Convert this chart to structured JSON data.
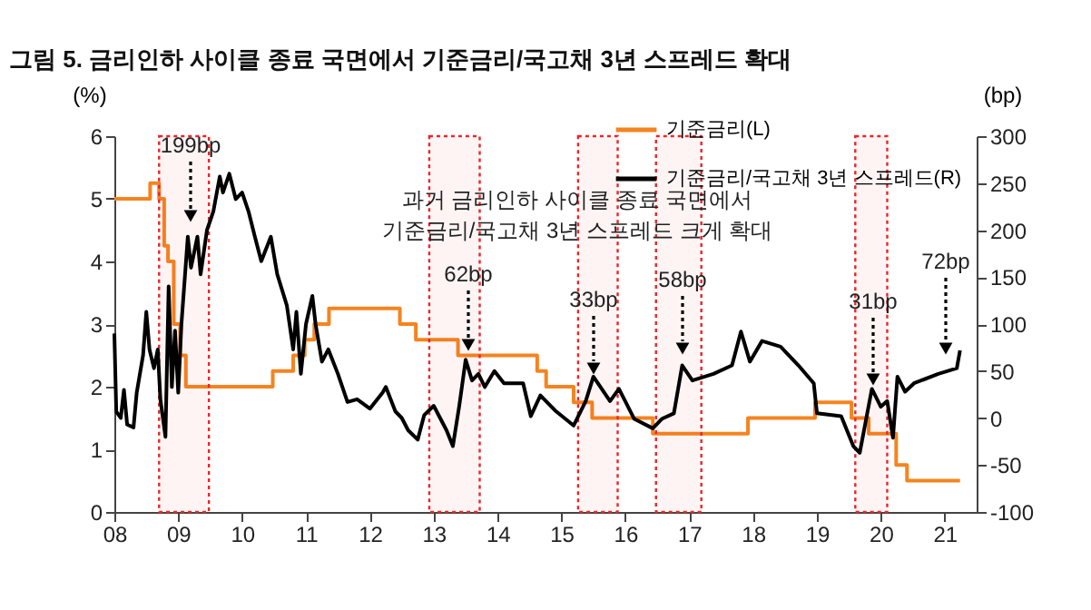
{
  "chart_data": {
    "type": "line",
    "title": "그림 5. 금리인하 사이클 종료 국면에서 기준금리/국고채 3년 스프레드 확대",
    "ylabel": "(%)",
    "y2label": "(bp)",
    "xlim": [
      2008,
      2021.5
    ],
    "xticks": [
      {
        "value": 2008,
        "label": "08"
      },
      {
        "value": 2009,
        "label": "09"
      },
      {
        "value": 2010,
        "label": "10"
      },
      {
        "value": 2011,
        "label": "11"
      },
      {
        "value": 2012,
        "label": "12"
      },
      {
        "value": 2013,
        "label": "13"
      },
      {
        "value": 2014,
        "label": "14"
      },
      {
        "value": 2015,
        "label": "15"
      },
      {
        "value": 2016,
        "label": "16"
      },
      {
        "value": 2017,
        "label": "17"
      },
      {
        "value": 2018,
        "label": "18"
      },
      {
        "value": 2019,
        "label": "19"
      },
      {
        "value": 2020,
        "label": "20"
      },
      {
        "value": 2021,
        "label": "21"
      }
    ],
    "ylim": [
      0,
      6
    ],
    "yticks": [
      0,
      1,
      2,
      3,
      4,
      5,
      6
    ],
    "y2lim": [
      -100,
      300
    ],
    "y2ticks": [
      -100,
      -50,
      0,
      50,
      100,
      150,
      200,
      250,
      300
    ],
    "grid": false,
    "legend": "top right",
    "marker": "none",
    "line_style": "solid",
    "series": [
      {
        "name": "기준금리(L)",
        "type": "step",
        "color": "#f5841f",
        "x": [
          2008,
          2008.56,
          2008.7,
          2008.78,
          2008.84,
          2008.93,
          2009.03,
          2009.12,
          2010.48,
          2010.8,
          2010.98,
          2011.13,
          2011.36,
          2012.47,
          2012.72,
          2013.38,
          2014.62,
          2014.76,
          2015.19,
          2015.48,
          2016.43,
          2017.92,
          2018.97,
          2019.54,
          2019.81,
          2020.24,
          2020.41,
          2021.24
        ],
        "values": [
          5.0,
          5.25,
          5.0,
          4.25,
          4.0,
          3.0,
          2.5,
          2.0,
          2.25,
          2.5,
          2.75,
          3.0,
          3.25,
          3.0,
          2.75,
          2.5,
          2.25,
          2.0,
          1.75,
          1.5,
          1.25,
          1.5,
          1.75,
          1.5,
          1.25,
          0.75,
          0.5,
          0.5
        ]
      },
      {
        "name": "기준금리/국고채 3년 스프레드(R)",
        "type": "line",
        "axis": "y2",
        "color": "#000000",
        "x": [
          2008.0,
          2008.03,
          2008.1,
          2008.15,
          2008.2,
          2008.3,
          2008.35,
          2008.45,
          2008.5,
          2008.55,
          2008.62,
          2008.68,
          2008.72,
          2008.8,
          2008.85,
          2008.9,
          2008.95,
          2009.0,
          2009.05,
          2009.15,
          2009.2,
          2009.3,
          2009.35,
          2009.45,
          2009.55,
          2009.65,
          2009.7,
          2009.8,
          2009.9,
          2010.0,
          2010.1,
          2010.2,
          2010.3,
          2010.45,
          2010.55,
          2010.7,
          2010.8,
          2010.85,
          2010.92,
          2011.0,
          2011.1,
          2011.15,
          2011.25,
          2011.35,
          2011.5,
          2011.65,
          2011.8,
          2012.0,
          2012.2,
          2012.25,
          2012.4,
          2012.5,
          2012.6,
          2012.75,
          2012.85,
          2013.0,
          2013.1,
          2013.2,
          2013.3,
          2013.4,
          2013.5,
          2013.6,
          2013.7,
          2013.8,
          2013.95,
          2014.1,
          2014.4,
          2014.52,
          2014.67,
          2014.9,
          2015.19,
          2015.38,
          2015.5,
          2015.76,
          2015.9,
          2016.14,
          2016.43,
          2016.57,
          2016.76,
          2016.89,
          2017.05,
          2017.38,
          2017.67,
          2017.81,
          2017.95,
          2018.14,
          2018.43,
          2018.71,
          2018.95,
          2019.0,
          2019.38,
          2019.57,
          2019.67,
          2019.86,
          2020.0,
          2020.1,
          2020.19,
          2020.26,
          2020.38,
          2020.52,
          2020.9,
          2021.19,
          2021.24
        ],
        "values": [
          90,
          7,
          0,
          30,
          -7,
          -10,
          27,
          67,
          113,
          73,
          53,
          73,
          20,
          -20,
          140,
          33,
          93,
          27,
          100,
          193,
          160,
          193,
          153,
          200,
          220,
          257,
          240,
          260,
          233,
          240,
          220,
          193,
          167,
          193,
          153,
          120,
          73,
          113,
          47,
          100,
          130,
          100,
          60,
          73,
          47,
          17,
          20,
          10,
          27,
          33,
          7,
          0,
          -13,
          -23,
          3,
          13,
          0,
          -13,
          -30,
          13,
          62,
          40,
          47,
          33,
          50,
          37,
          37,
          2,
          24,
          8,
          -8,
          18,
          44,
          18,
          31,
          -1,
          -11,
          -1,
          5,
          56,
          40,
          47,
          56,
          92,
          60,
          82,
          76,
          56,
          37,
          5,
          2,
          -30,
          -37,
          31,
          12,
          18,
          -21,
          44,
          28,
          37,
          47,
          53,
          72
        ]
      }
    ],
    "bands": [
      {
        "axis": "x",
        "from": 2008.7,
        "to": 2009.48,
        "color": "#e8262b"
      },
      {
        "axis": "x",
        "from": 2012.93,
        "to": 2013.72,
        "color": "#e8262b"
      },
      {
        "axis": "x",
        "from": 2015.26,
        "to": 2015.88,
        "color": "#e8262b"
      },
      {
        "axis": "x",
        "from": 2016.48,
        "to": 2017.19,
        "color": "#e8262b"
      },
      {
        "axis": "x",
        "from": 2019.6,
        "to": 2020.1,
        "color": "#e8262b"
      }
    ],
    "annotations": [
      "과거 금리인하 사이클 종료 국면에서\n기준금리/국고채 3년 스프레드 크게 확대",
      "199bp",
      "62bp",
      "33bp",
      "58bp",
      "31bp",
      "72bp"
    ]
  }
}
